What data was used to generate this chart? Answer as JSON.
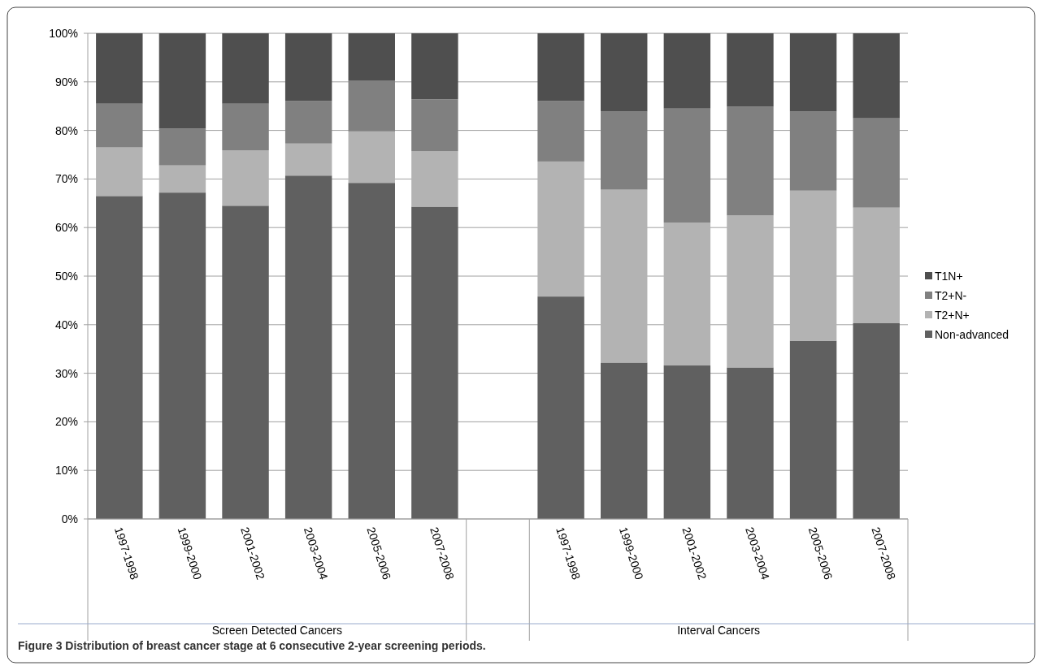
{
  "chart_data": {
    "type": "bar",
    "stacked": true,
    "title": "Figure 3 Distribution of breast cancer stage at 6 consecutive 2-year screening periods.",
    "categories": [
      "1997-1998",
      "1999-2000",
      "2001-2002",
      "2003-2004",
      "2005-2006",
      "2007-2008",
      null,
      "1997-1998",
      "1999-2000",
      "2001-2002",
      "2003-2004",
      "2005-2006",
      "2007-2008"
    ],
    "series": [
      {
        "name": "Non-advanced",
        "color": "#606060",
        "values": [
          66.5,
          67.2,
          64.5,
          70.7,
          69.2,
          64.3,
          null,
          45.8,
          32.2,
          31.6,
          31.2,
          36.7,
          40.3
        ]
      },
      {
        "name": "T2+N+",
        "color": "#b3b3b3",
        "values": [
          10.0,
          5.6,
          11.4,
          6.6,
          10.6,
          11.4,
          null,
          27.8,
          35.6,
          29.4,
          31.3,
          30.9,
          23.8
        ]
      },
      {
        "name": "T2+N-",
        "color": "#808080",
        "values": [
          9.0,
          7.6,
          9.6,
          8.8,
          10.5,
          10.7,
          null,
          12.5,
          16.1,
          23.5,
          22.4,
          16.3,
          18.4
        ]
      },
      {
        "name": "T1N+",
        "color": "#4f4f4f",
        "values": [
          14.5,
          19.6,
          14.5,
          13.9,
          9.7,
          13.6,
          null,
          13.9,
          16.1,
          15.5,
          15.1,
          16.1,
          17.5
        ]
      }
    ],
    "annotations": [
      "Screen Detected Cancers",
      "Interval Cancers"
    ],
    "ylim": [
      0,
      100
    ],
    "yticks": [
      {
        "value": 0,
        "label": "0%"
      },
      {
        "value": 10,
        "label": "10%"
      },
      {
        "value": 20,
        "label": "20%"
      },
      {
        "value": 30,
        "label": "30%"
      },
      {
        "value": 40,
        "label": "40%"
      },
      {
        "value": 50,
        "label": "50%"
      },
      {
        "value": 60,
        "label": "60%"
      },
      {
        "value": 70,
        "label": "70%"
      },
      {
        "value": 80,
        "label": "80%"
      },
      {
        "value": 90,
        "label": "90%"
      },
      {
        "value": 100,
        "label": "100%"
      }
    ],
    "grid": "y",
    "legend": "right"
  }
}
